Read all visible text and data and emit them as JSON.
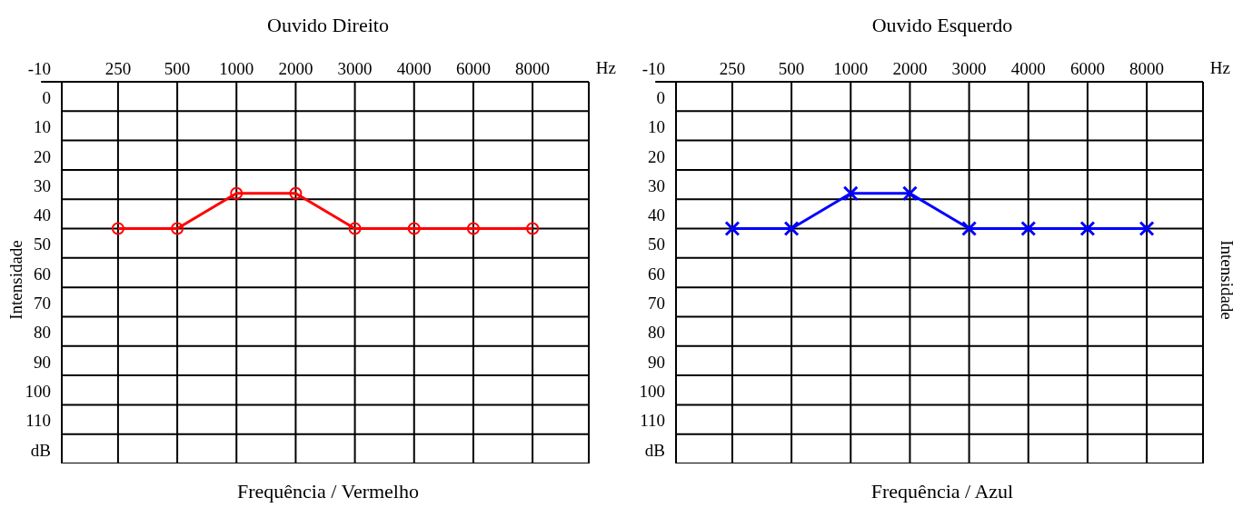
{
  "chart_data": [
    {
      "type": "line",
      "title": "Ouvido Direito",
      "xlabel": "Hz",
      "ylabel": "Intensidade",
      "annotations": [
        "Frequência / Vermelho"
      ],
      "categories": [
        "250",
        "500",
        "1000",
        "2000",
        "3000",
        "4000",
        "6000",
        "8000"
      ],
      "series": [
        {
          "color": "#ff0000",
          "values": [
            40,
            40,
            28,
            28,
            40,
            40,
            40,
            40
          ]
        }
      ],
      "ylim": [
        120,
        -10
      ],
      "yticks": [
        -10,
        0,
        10,
        20,
        30,
        40,
        50,
        60,
        70,
        80,
        90,
        100,
        110,
        {
          "value": 120,
          "label": "dB"
        }
      ],
      "grid": true,
      "marker": "circle",
      "line_style": "solid"
    },
    {
      "type": "line",
      "title": "Ouvido Esquerdo",
      "xlabel": "Hz",
      "y2label": "Intensidade",
      "annotations": [
        "Frequência / Azul"
      ],
      "categories": [
        "250",
        "500",
        "1000",
        "2000",
        "3000",
        "4000",
        "6000",
        "8000"
      ],
      "series": [
        {
          "color": "#0000ff",
          "values": [
            40,
            40,
            28,
            28,
            40,
            40,
            40,
            40
          ]
        }
      ],
      "ylim": [
        120,
        -10
      ],
      "yticks": [
        -10,
        0,
        10,
        20,
        30,
        40,
        50,
        60,
        70,
        80,
        90,
        100,
        110,
        {
          "value": 120,
          "label": "dB"
        }
      ],
      "grid": true,
      "marker": "cross",
      "line_style": "solid"
    }
  ]
}
